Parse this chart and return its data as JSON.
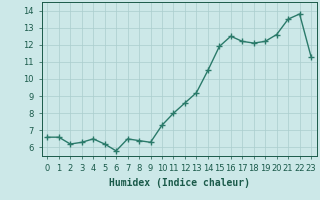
{
  "x": [
    0,
    1,
    2,
    3,
    4,
    5,
    6,
    7,
    8,
    9,
    10,
    11,
    12,
    13,
    14,
    15,
    16,
    17,
    18,
    19,
    20,
    21,
    22,
    23
  ],
  "y": [
    6.6,
    6.6,
    6.2,
    6.3,
    6.5,
    6.2,
    5.8,
    6.5,
    6.4,
    6.3,
    7.3,
    8.0,
    8.6,
    9.2,
    10.5,
    11.9,
    12.5,
    12.2,
    12.1,
    12.2,
    12.6,
    13.5,
    13.8,
    11.3
  ],
  "line_color": "#2a7a6a",
  "marker": "+",
  "marker_size": 4,
  "marker_linewidth": 1.0,
  "bg_color": "#cce8e8",
  "grid_color": "#aacece",
  "xlabel": "Humidex (Indice chaleur)",
  "ylim": [
    5.5,
    14.5
  ],
  "xlim": [
    -0.5,
    23.5
  ],
  "yticks": [
    6,
    7,
    8,
    9,
    10,
    11,
    12,
    13,
    14
  ],
  "xticks": [
    0,
    1,
    2,
    3,
    4,
    5,
    6,
    7,
    8,
    9,
    10,
    11,
    12,
    13,
    14,
    15,
    16,
    17,
    18,
    19,
    20,
    21,
    22,
    23
  ],
  "tick_label_color": "#1a5a4a",
  "axis_color": "#1a5a4a",
  "xlabel_color": "#1a5a4a",
  "xlabel_fontsize": 7,
  "tick_fontsize": 6,
  "linewidth": 1.0
}
